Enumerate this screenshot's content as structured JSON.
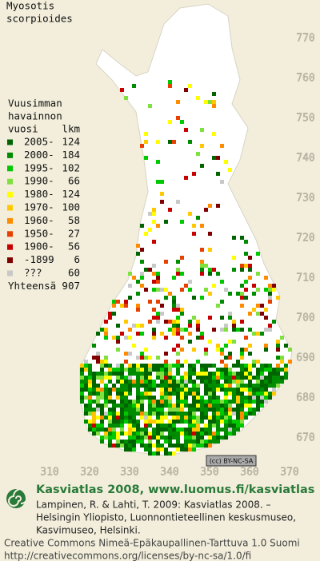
{
  "header": {
    "species": [
      "Myosotis",
      "scorpioides"
    ]
  },
  "legend": {
    "heading": [
      "Vuusimman",
      "havainnon",
      "vuosi"
    ],
    "count_heading": "lkm",
    "items": [
      {
        "label": "2005-",
        "count": 124,
        "color": "#006400"
      },
      {
        "label": "2000-",
        "count": 184,
        "color": "#008c00"
      },
      {
        "label": "1995-",
        "count": 102,
        "color": "#00c800"
      },
      {
        "label": "1990-",
        "count": 66,
        "color": "#80e040"
      },
      {
        "label": "1980-",
        "count": 124,
        "color": "#ffff00"
      },
      {
        "label": "1970-",
        "count": 100,
        "color": "#ffc800"
      },
      {
        "label": "1960-",
        "count": 58,
        "color": "#ff8c00"
      },
      {
        "label": "1950-",
        "count": 27,
        "color": "#e84000"
      },
      {
        "label": "1900-",
        "count": 56,
        "color": "#c80000"
      },
      {
        "label": "-1899",
        "count": 6,
        "color": "#800000"
      },
      {
        "label": "???",
        "count": 60,
        "color": "#c8c8c8"
      }
    ],
    "total": {
      "label": "Yhteensä",
      "count": 907
    }
  },
  "map": {
    "yticks": [
      770,
      760,
      750,
      740,
      730,
      720,
      710,
      700,
      690,
      680,
      670
    ],
    "xticks": [
      310,
      320,
      330,
      340,
      350,
      360,
      370
    ],
    "license_badge": "(cc) BY-NC-SA"
  },
  "footer": {
    "site": "Kasviatlas 2008, www.luomus.fi/kasviatlas",
    "citation": [
      "Lampinen, R. & Lahti, T. 2009: Kasviatlas 2008. –",
      "Helsingin Yliopisto, Luonnontieteellinen keskusmuseo,",
      "Kasvimuseo, Helsinki."
    ],
    "license": [
      "Creative Commons Nimeä-Epäkaupallinen-Tarttuva 1.0 Suomi",
      "http://creativecommons.org/licenses/by-nc-sa/1.0/fi"
    ]
  }
}
